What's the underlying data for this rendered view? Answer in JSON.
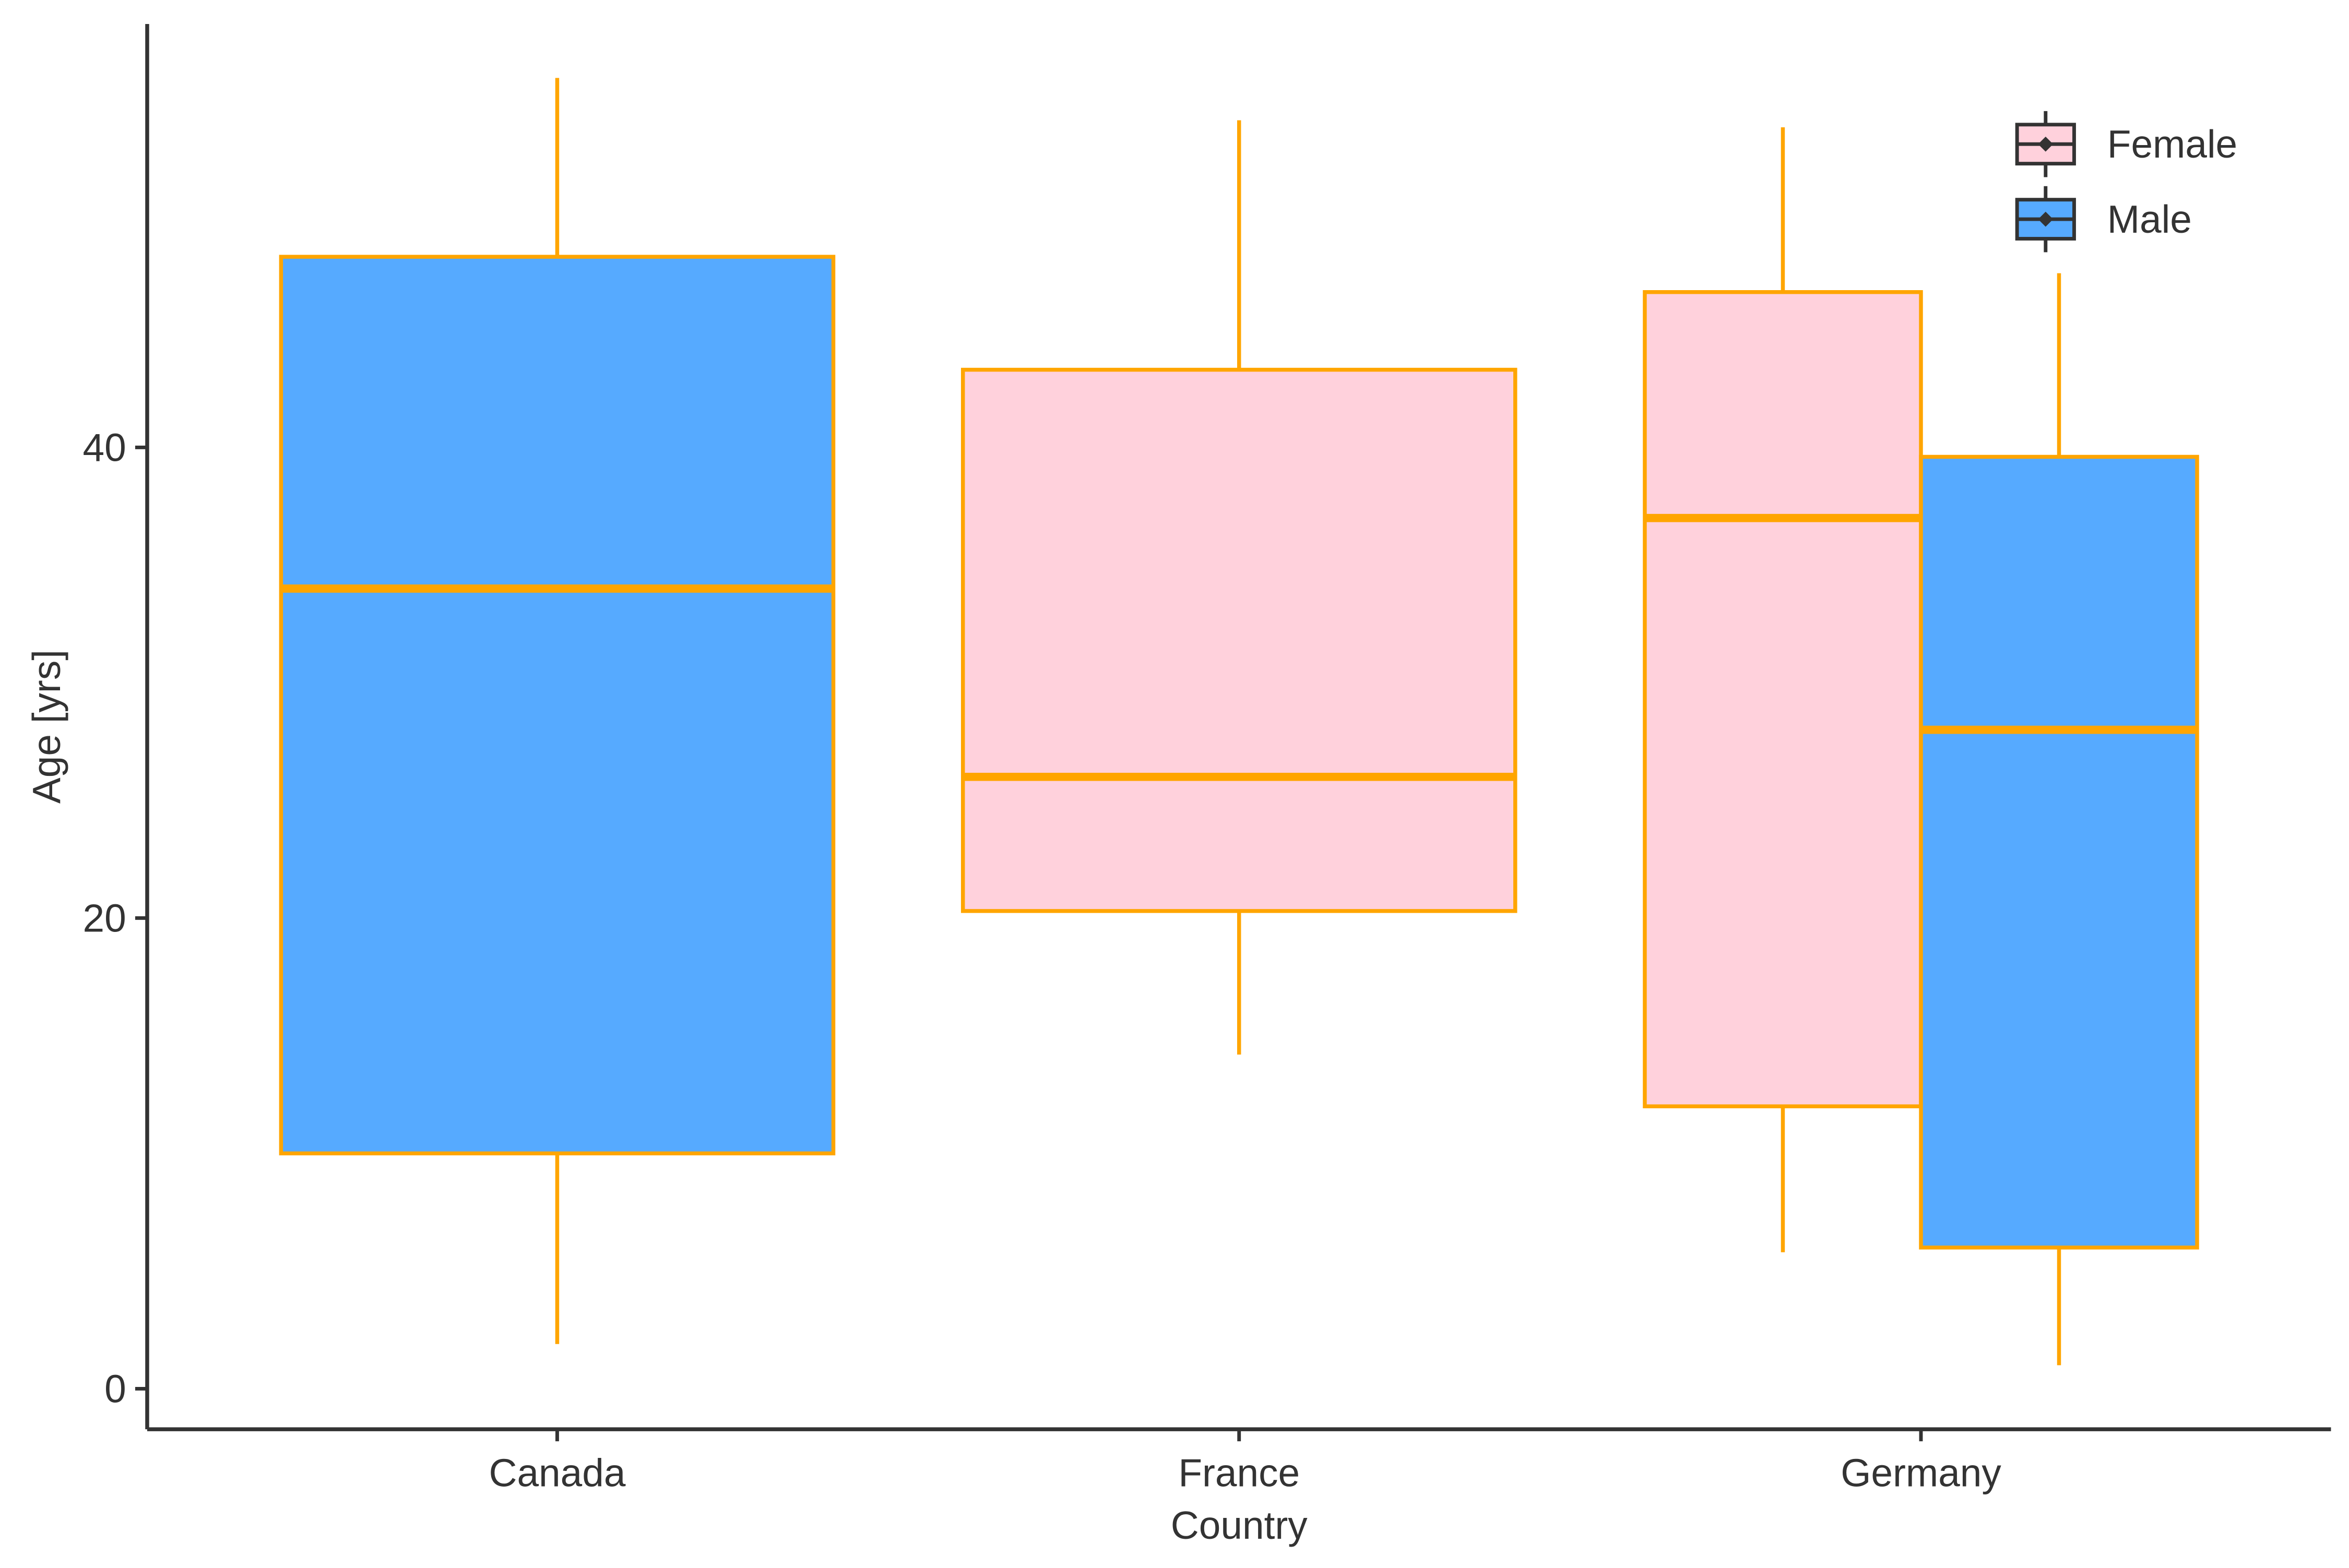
{
  "chart_data": {
    "type": "boxplot",
    "title": "",
    "xlabel": "Country",
    "ylabel": "Age [yrs]",
    "categories": [
      "Canada",
      "France",
      "Germany"
    ],
    "ylim": [
      -1.5,
      58.5
    ],
    "yticks": [
      0,
      20,
      40
    ],
    "grid": false,
    "legend_position": "top-right",
    "legend": [
      "Female",
      "Male"
    ],
    "colors": {
      "Female": "#FFD1DC",
      "Male": "#56AAFF",
      "outline": "#FFA500",
      "axis": "#333333",
      "text": "#333333"
    },
    "series": [
      {
        "name": "Female",
        "boxes": [
          {
            "category": "France",
            "min": 14.2,
            "q1": 20.3,
            "median": 26.0,
            "q3": 43.3,
            "max": 53.9
          },
          {
            "category": "Germany",
            "min": 5.8,
            "q1": 12.0,
            "median": 37.0,
            "q3": 46.6,
            "max": 53.6
          }
        ]
      },
      {
        "name": "Male",
        "boxes": [
          {
            "category": "Canada",
            "min": 1.9,
            "q1": 10.0,
            "median": 34.0,
            "q3": 48.1,
            "max": 55.7
          },
          {
            "category": "Germany",
            "min": 1.0,
            "q1": 6.0,
            "median": 28.0,
            "q3": 39.6,
            "max": 47.4
          }
        ]
      }
    ]
  }
}
